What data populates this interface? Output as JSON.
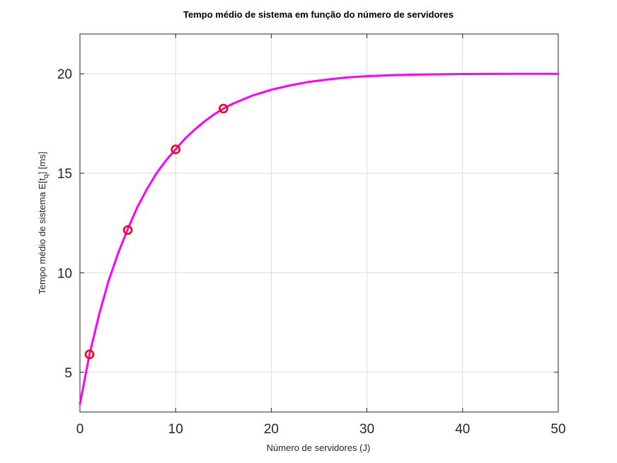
{
  "chart_data": {
    "type": "line",
    "title": "Tempo médio de sistema em função do número de servidores",
    "xlabel": "Número de servidores (J)",
    "ylabel_prefix": "Tempo médio de sistema E[t",
    "ylabel_subscript": "q",
    "ylabel_suffix": "] [ms]",
    "xlim": [
      0,
      50
    ],
    "ylim": [
      3,
      22
    ],
    "xticks": [
      0,
      10,
      20,
      30,
      40,
      50
    ],
    "yticks": [
      5,
      10,
      15,
      20
    ],
    "grid": true,
    "curve": {
      "color": "#ff00ff",
      "x": [
        0,
        1,
        2,
        3,
        4,
        5,
        6,
        7,
        8,
        9,
        10,
        11,
        12,
        13,
        14,
        15,
        16,
        17,
        18,
        19,
        20,
        22,
        24,
        26,
        28,
        30,
        32,
        35,
        40,
        45,
        50
      ],
      "y": [
        3.4,
        5.9,
        7.9,
        9.6,
        11.0,
        12.2,
        13.3,
        14.2,
        15.0,
        15.65,
        16.2,
        16.75,
        17.2,
        17.6,
        17.95,
        18.25,
        18.5,
        18.7,
        18.9,
        19.05,
        19.2,
        19.42,
        19.6,
        19.72,
        19.82,
        19.88,
        19.92,
        19.96,
        19.99,
        20.0,
        20.0
      ]
    },
    "markers": {
      "color": "#ff0000",
      "x": [
        1,
        5,
        10,
        15
      ],
      "y": [
        5.9,
        12.15,
        16.2,
        18.25
      ]
    }
  }
}
